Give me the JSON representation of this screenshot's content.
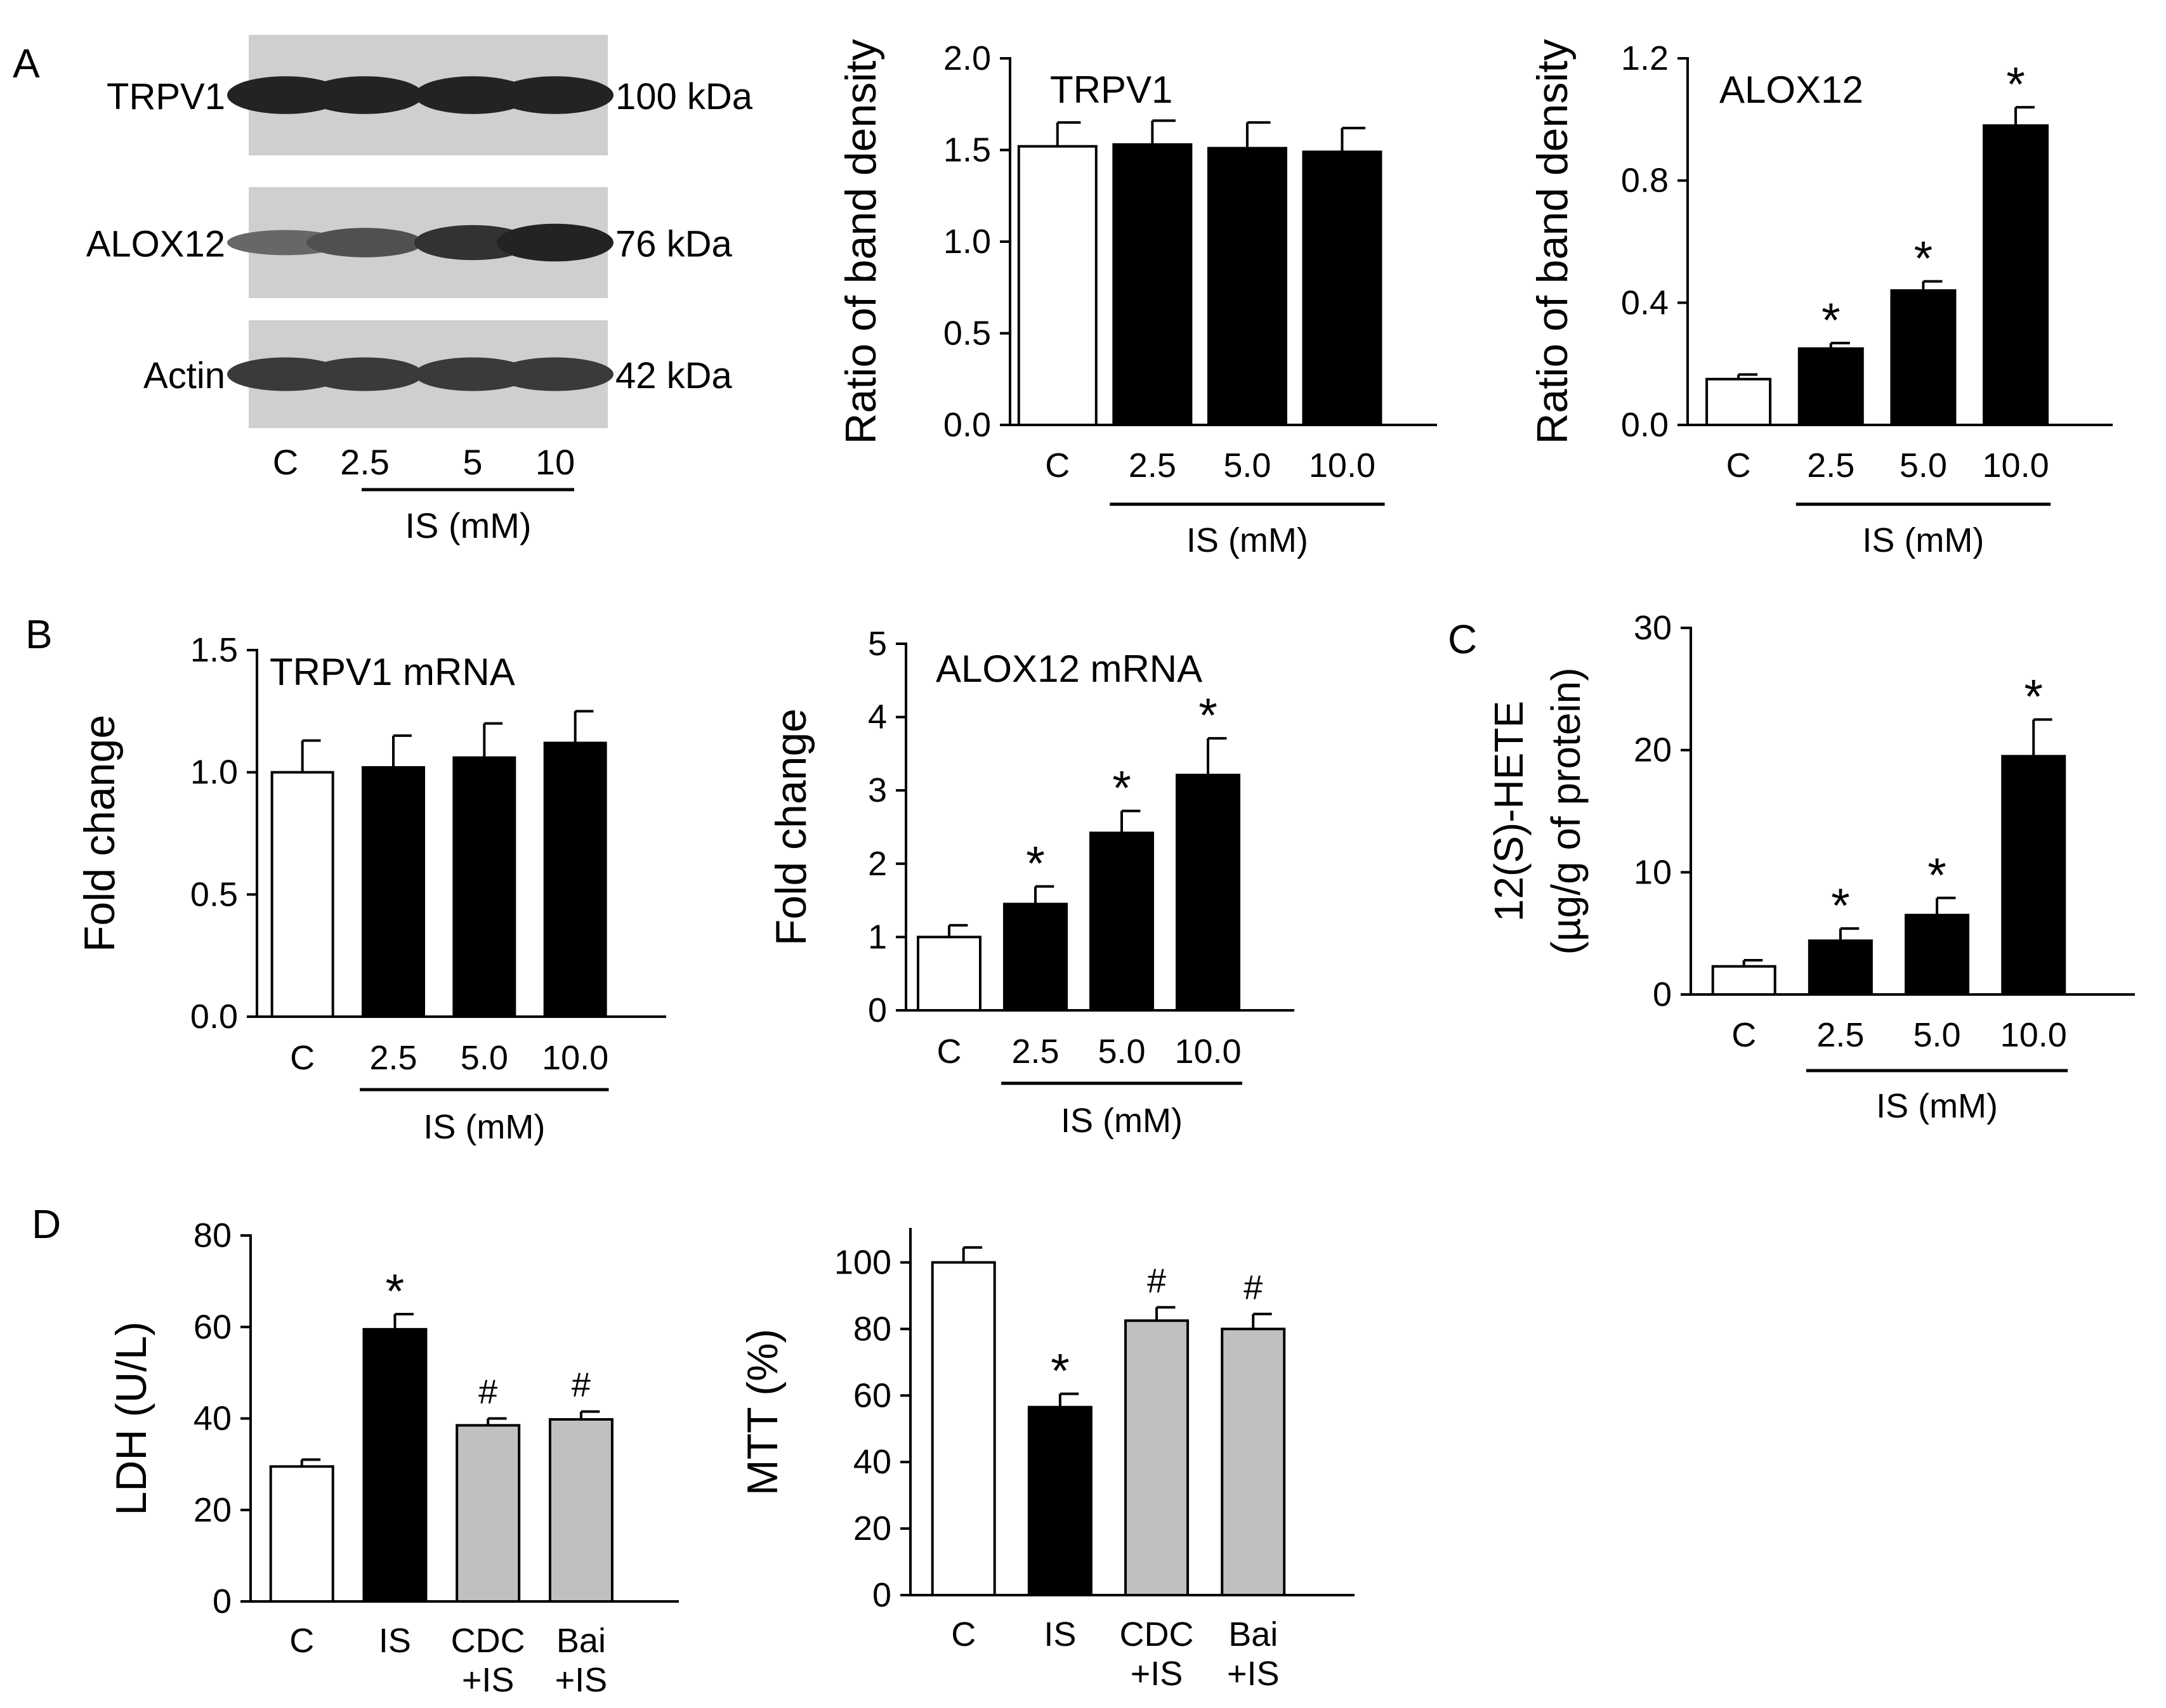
{
  "panel_labels": [
    "A",
    "B",
    "C",
    "D"
  ],
  "blot": {
    "rows": [
      {
        "name": "TRPV1",
        "kda": "100 kDa",
        "intensity": [
          0.9,
          0.9,
          0.9,
          0.9
        ]
      },
      {
        "name": "ALOX12",
        "kda": "76 kDa",
        "intensity": [
          0.45,
          0.6,
          0.8,
          0.9
        ]
      },
      {
        "name": "Actin",
        "kda": "42 kDa",
        "intensity": [
          0.75,
          0.75,
          0.75,
          0.75
        ]
      }
    ],
    "lanes": [
      "C",
      "2.5",
      "5",
      "10"
    ],
    "group_label": "IS (mM)"
  },
  "colors": {
    "control": "#ffffff",
    "treatment": "#000000",
    "inhibitor": "#c0c0c0"
  },
  "chart_data": [
    {
      "type": "bar",
      "title": "TRPV1",
      "ylabel": "Ratio of band density",
      "xlabel": "IS (mM)",
      "categories": [
        "C",
        "2.5",
        "5.0",
        "10.0"
      ],
      "values": [
        1.52,
        1.53,
        1.51,
        1.49
      ],
      "errors": [
        0.13,
        0.13,
        0.14,
        0.13
      ],
      "fills": [
        "control",
        "treatment",
        "treatment",
        "treatment"
      ],
      "marks": [
        "",
        "",
        "",
        ""
      ],
      "ylim": [
        0,
        2.0
      ],
      "yticks": [
        "0.0",
        "0.5",
        "1.0",
        "1.5",
        "2.0"
      ],
      "group_from": 1
    },
    {
      "type": "bar",
      "title": "ALOX12",
      "ylabel": "Ratio of band density",
      "xlabel": "IS (mM)",
      "categories": [
        "C",
        "2.5",
        "5.0",
        "10.0"
      ],
      "values": [
        0.15,
        0.25,
        0.44,
        0.98
      ],
      "errors": [
        0.015,
        0.018,
        0.03,
        0.06
      ],
      "fills": [
        "control",
        "treatment",
        "treatment",
        "treatment"
      ],
      "marks": [
        "",
        "*",
        "*",
        "*"
      ],
      "ylim": [
        0,
        1.2
      ],
      "yticks": [
        "0.0",
        "0.4",
        "0.8",
        "1.2"
      ],
      "group_from": 1
    },
    {
      "type": "bar",
      "title": "TRPV1 mRNA",
      "ylabel": "Fold change",
      "xlabel": "IS (mM)",
      "categories": [
        "C",
        "2.5",
        "5.0",
        "10.0"
      ],
      "values": [
        1.0,
        1.02,
        1.06,
        1.12
      ],
      "errors": [
        0.13,
        0.13,
        0.14,
        0.13
      ],
      "fills": [
        "control",
        "treatment",
        "treatment",
        "treatment"
      ],
      "marks": [
        "",
        "",
        "",
        ""
      ],
      "ylim": [
        0,
        1.5
      ],
      "yticks": [
        "0.0",
        "0.5",
        "1.0",
        "1.5"
      ],
      "group_from": 1
    },
    {
      "type": "bar",
      "title": "ALOX12 mRNA",
      "ylabel": "Fold change",
      "xlabel": "IS (mM)",
      "categories": [
        "C",
        "2.5",
        "5.0",
        "10.0"
      ],
      "values": [
        1.0,
        1.45,
        2.42,
        3.21
      ],
      "errors": [
        0.16,
        0.24,
        0.3,
        0.5
      ],
      "fills": [
        "control",
        "treatment",
        "treatment",
        "treatment"
      ],
      "marks": [
        "",
        "*",
        "*",
        "*"
      ],
      "ylim": [
        0,
        5
      ],
      "yticks": [
        "0",
        "1",
        "2",
        "3",
        "4",
        "5"
      ],
      "group_from": 1
    },
    {
      "type": "bar",
      "title": "",
      "ylabel": "12(S)-HETE",
      "ylabel2": "(µg/g of protein)",
      "xlabel": "IS (mM)",
      "categories": [
        "C",
        "2.5",
        "5.0",
        "10.0"
      ],
      "values": [
        2.3,
        4.4,
        6.5,
        19.5
      ],
      "errors": [
        0.5,
        1.0,
        1.4,
        3.0
      ],
      "fills": [
        "control",
        "treatment",
        "treatment",
        "treatment"
      ],
      "marks": [
        "",
        "*",
        "*",
        "*"
      ],
      "ylim": [
        0,
        30
      ],
      "yticks": [
        "0",
        "10",
        "20",
        "30"
      ],
      "group_from": 1
    },
    {
      "type": "bar",
      "title": "",
      "ylabel": "LDH (U/L)",
      "xlabel": "",
      "categories": [
        "C",
        "IS",
        "CDC\n+IS",
        "Bai\n+IS"
      ],
      "values": [
        29.5,
        59.5,
        38.5,
        39.8
      ],
      "errors": [
        1.5,
        3.3,
        1.5,
        1.7
      ],
      "fills": [
        "control",
        "treatment",
        "inhibitor",
        "inhibitor"
      ],
      "marks": [
        "",
        "*",
        "#",
        "#"
      ],
      "ylim": [
        0,
        80
      ],
      "yticks": [
        "0",
        "20",
        "40",
        "60",
        "80"
      ],
      "group_from": -1
    },
    {
      "type": "bar",
      "title": "",
      "ylabel": "MTT (%)",
      "xlabel": "",
      "categories": [
        "C",
        "IS",
        "CDC\n+IS",
        "Bai\n+IS"
      ],
      "values": [
        100,
        56.5,
        82.5,
        80
      ],
      "errors": [
        4.5,
        4,
        4,
        4.5
      ],
      "fills": [
        "control",
        "treatment",
        "inhibitor",
        "inhibitor"
      ],
      "marks": [
        "",
        "*",
        "#",
        "#"
      ],
      "ylim": [
        0,
        110
      ],
      "yticks": [
        "0",
        "20",
        "40",
        "60",
        "80",
        "100"
      ],
      "group_from": -1
    }
  ]
}
